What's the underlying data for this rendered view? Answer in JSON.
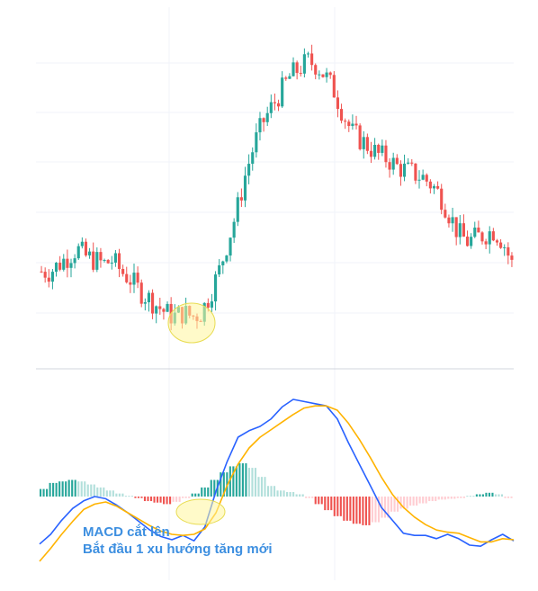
{
  "annotation": {
    "line1": "MACD cắt lên",
    "line2": "Bắt đầu 1 xu hướng tăng mới"
  },
  "colors": {
    "up_candle": "#26a69a",
    "down_candle": "#ef5350",
    "macd_line": "#2962ff",
    "signal_line": "#ffb300",
    "hist_up_strong": "#26a69a",
    "hist_up_weak": "#b2dfdb",
    "hist_down_strong": "#ef5350",
    "hist_down_weak": "#ffcdd2",
    "highlight": "#fff59d",
    "grid": "#f0f3fa"
  },
  "chart_data": [
    {
      "type": "candlestick",
      "title": "",
      "grid": true,
      "price_path": [
        100,
        100,
        101,
        102,
        103,
        102,
        101.5,
        101,
        101.5,
        100,
        99,
        97.5,
        96.5,
        95.5,
        94.5,
        94,
        94.5,
        94,
        94.5,
        97,
        100,
        104,
        108,
        113,
        117,
        120,
        122,
        124,
        126,
        127,
        128,
        127.5,
        126,
        124,
        121,
        118.5,
        117.5,
        116.5,
        115.5,
        115,
        114,
        113.5,
        113,
        112.5,
        111.5,
        110,
        107.5,
        105,
        104,
        104.5,
        105,
        105.5,
        104,
        101
      ]
    },
    {
      "type": "line",
      "title": "",
      "series": [
        {
          "name": "",
          "values": [
            -4.4,
            -3.5,
            -2.2,
            -1.1,
            -0.4,
            0.0,
            -0.2,
            -0.8,
            -1.5,
            -2.3,
            -3.1,
            -3.7,
            -4.0,
            -3.6,
            -4.1,
            -2.8,
            0.5,
            3.2,
            5.5,
            6.1,
            6.5,
            7.2,
            8.3,
            9.0,
            8.8,
            8.6,
            8.4,
            7.2,
            5.0,
            3.0,
            1.0,
            -1.0,
            -2.2,
            -3.4,
            -3.6,
            -3.6,
            -3.9,
            -3.5,
            -3.9,
            -4.5,
            -4.6,
            -4.0,
            -3.5,
            -4.1
          ]
        },
        {
          "name": "",
          "values": [
            -6.0,
            -4.8,
            -3.5,
            -2.3,
            -1.2,
            -0.7,
            -0.5,
            -0.9,
            -1.5,
            -2.1,
            -2.7,
            -3.2,
            -3.5,
            -3.6,
            -3.5,
            -3.0,
            -1.5,
            1.0,
            3.0,
            4.5,
            5.5,
            6.2,
            6.9,
            7.6,
            8.2,
            8.4,
            8.4,
            8.0,
            6.8,
            5.3,
            3.6,
            1.8,
            0.2,
            -1.0,
            -1.9,
            -2.6,
            -3.1,
            -3.3,
            -3.4,
            -3.8,
            -4.2,
            -4.2,
            -3.9,
            -4.0
          ]
        }
      ],
      "histogram": [
        0.5,
        0.9,
        1.0,
        1.1,
        1.0,
        0.8,
        0.6,
        0.4,
        0.2,
        0.05,
        -0.1,
        -0.3,
        -0.4,
        -0.5,
        -0.35,
        -0.1,
        0.2,
        0.6,
        1.1,
        1.6,
        2.0,
        2.2,
        1.9,
        1.3,
        0.7,
        0.4,
        0.3,
        0.15,
        -0.1,
        -0.5,
        -0.9,
        -1.3,
        -1.6,
        -1.8,
        -1.9,
        -1.7,
        -1.4,
        -1.0,
        -0.8,
        -0.6,
        -0.45,
        -0.3,
        -0.2,
        -0.15,
        -0.1,
        0.05,
        0.15,
        0.25,
        0.15,
        -0.1
      ]
    }
  ]
}
